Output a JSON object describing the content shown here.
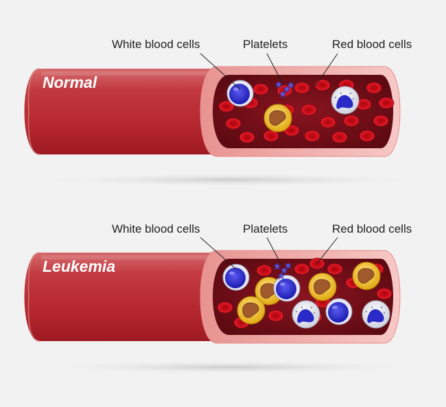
{
  "panels": [
    {
      "title": "Normal",
      "labels": {
        "wbc": "White blood cells",
        "platelets": "Platelets",
        "rbc": "Red blood cells"
      }
    },
    {
      "title": "Leukemia",
      "labels": {
        "wbc": "White blood cells",
        "platelets": "Platelets",
        "rbc": "Red blood cells"
      }
    }
  ],
  "colors": {
    "background": "#f2f2f2",
    "vessel_wall": "#c0393f",
    "vessel_rim": "#f2b7b4",
    "lumen": "#7a0f18",
    "red_cell": "#d4101e",
    "white_cell_blue": "#2a2ad0",
    "white_cell_gold": "#f0c020",
    "platelet": "#5a57d8"
  }
}
